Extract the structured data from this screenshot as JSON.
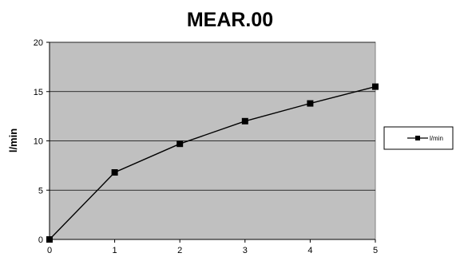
{
  "chart_data": {
    "type": "line",
    "title": "MEAR.00",
    "xlabel": "",
    "ylabel": "l/min",
    "x": [
      0,
      1,
      2,
      3,
      4,
      5
    ],
    "xticks": [
      "0",
      "1",
      "2",
      "3",
      "4",
      "5"
    ],
    "yticks": [
      "0",
      "5",
      "10",
      "15",
      "20"
    ],
    "xlim": [
      0,
      5
    ],
    "ylim": [
      0,
      20
    ],
    "grid": "horizontal",
    "legend_position": "right",
    "series": [
      {
        "name": "l/min",
        "values": [
          0,
          6.8,
          9.7,
          12.0,
          13.8,
          15.5
        ],
        "marker": "square"
      }
    ]
  },
  "colors": {
    "plot_background": "#c0c0c0",
    "line": "#000000",
    "grid": "#000000"
  }
}
